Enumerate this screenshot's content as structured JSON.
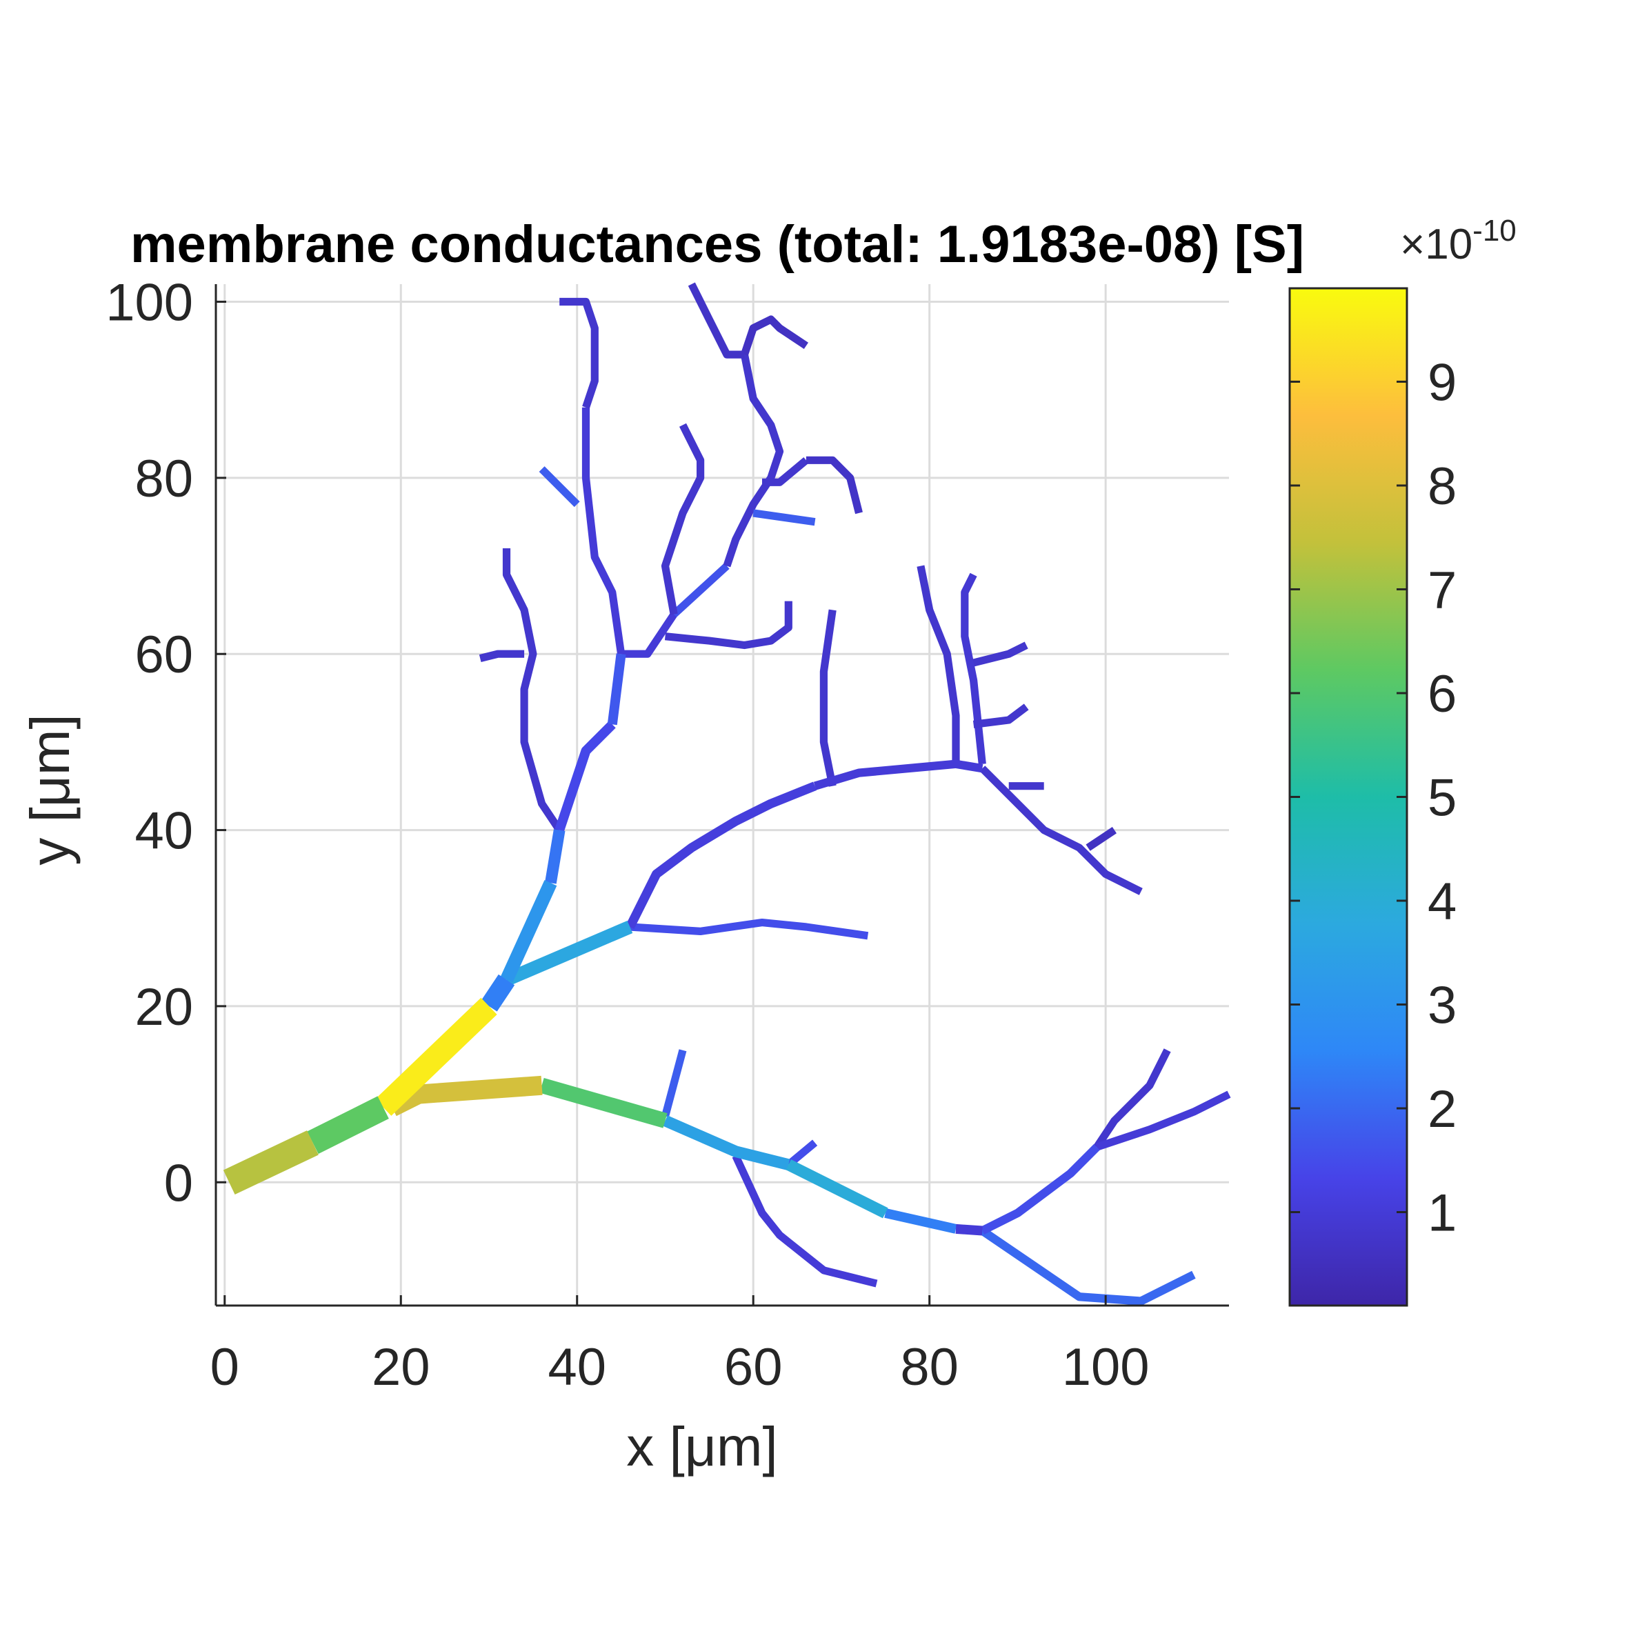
{
  "chart_data": {
    "type": "line",
    "title": "membrane conductances (total: 1.9183e-08) [S]",
    "xlabel": "x [μm]",
    "ylabel": "y [μm]",
    "xlim": [
      -1,
      114
    ],
    "ylim": [
      -14,
      102
    ],
    "xticks": [
      0,
      20,
      40,
      60,
      80,
      100
    ],
    "xtick_labels": [
      "0",
      "20",
      "40",
      "60",
      "80",
      "100"
    ],
    "yticks": [
      0,
      20,
      40,
      60,
      80,
      100
    ],
    "ytick_labels": [
      "0",
      "20",
      "40",
      "60",
      "80",
      "100"
    ],
    "grid": true,
    "colorbar": {
      "multiplier_base": "×10",
      "multiplier_exponent": "-10",
      "range": [
        0.1,
        9.9
      ],
      "ticks": [
        1,
        2,
        3,
        4,
        5,
        6,
        7,
        8,
        9
      ],
      "tick_labels": [
        "1",
        "2",
        "3",
        "4",
        "5",
        "6",
        "7",
        "8",
        "9"
      ],
      "colormap": [
        "#3e26a8",
        "#4743e8",
        "#2e87f7",
        "#2ca9df",
        "#1ebda8",
        "#5ec962",
        "#c3c13b",
        "#fdbe3d",
        "#f9fb0e"
      ]
    },
    "segments": [
      {
        "points": [
          [
            0.5,
            0
          ],
          [
            10,
            4.5
          ]
        ],
        "value": 7.3,
        "width": 7.0
      },
      {
        "points": [
          [
            10,
            4.5
          ],
          [
            18,
            8.5
          ]
        ],
        "value": 6.2,
        "width": 6.5
      },
      {
        "points": [
          [
            18,
            8.5
          ],
          [
            30,
            20
          ]
        ],
        "value": 9.6,
        "width": 6.0
      },
      {
        "points": [
          [
            30,
            20
          ],
          [
            32,
            23
          ]
        ],
        "value": 2.4,
        "width": 5.0
      },
      {
        "points": [
          [
            19,
            8.5
          ],
          [
            22,
            10
          ],
          [
            36,
            11
          ]
        ],
        "value": 7.8,
        "width": 5.0
      },
      {
        "points": [
          [
            36,
            11
          ],
          [
            50,
            7
          ]
        ],
        "value": 6.0,
        "width": 4.0
      },
      {
        "points": [
          [
            50,
            7
          ],
          [
            58,
            3.5
          ],
          [
            64,
            2
          ]
        ],
        "value": 3.5,
        "width": 3.0
      },
      {
        "points": [
          [
            64,
            2
          ],
          [
            75,
            -3.5
          ]
        ],
        "value": 3.9,
        "width": 3.0
      },
      {
        "points": [
          [
            75,
            -3.5
          ],
          [
            83,
            -5.3
          ]
        ],
        "value": 2.4,
        "width": 2.5
      },
      {
        "points": [
          [
            83,
            -5.3
          ],
          [
            86,
            -5.5
          ]
        ],
        "value": 1.0,
        "width": 2.5
      },
      {
        "points": [
          [
            86,
            -5.5
          ],
          [
            97,
            -13
          ],
          [
            104,
            -13.5
          ],
          [
            110,
            -10.5
          ]
        ],
        "value": 2.0,
        "width": 2.2
      },
      {
        "points": [
          [
            86,
            -5.5
          ],
          [
            90,
            -3.5
          ],
          [
            96,
            1
          ],
          [
            99,
            4
          ]
        ],
        "value": 1.5,
        "width": 2.2
      },
      {
        "points": [
          [
            99,
            4
          ],
          [
            101,
            7
          ],
          [
            105,
            11
          ],
          [
            107,
            15
          ]
        ],
        "value": 0.8,
        "width": 2.0
      },
      {
        "points": [
          [
            99,
            4
          ],
          [
            105,
            6
          ],
          [
            110,
            8
          ],
          [
            114,
            10
          ]
        ],
        "value": 1.0,
        "width": 2.0
      },
      {
        "points": [
          [
            50,
            7.5
          ],
          [
            52,
            15
          ]
        ],
        "value": 1.8,
        "width": 2.0
      },
      {
        "points": [
          [
            58,
            3
          ],
          [
            61,
            -3.5
          ],
          [
            63,
            -6
          ],
          [
            68,
            -10
          ],
          [
            74,
            -11.5
          ]
        ],
        "value": 1.0,
        "width": 2.0
      },
      {
        "points": [
          [
            64,
            2
          ],
          [
            67,
            4.5
          ]
        ],
        "value": 1.5,
        "width": 2.0
      },
      {
        "points": [
          [
            32,
            23
          ],
          [
            46,
            29
          ]
        ],
        "value": 3.7,
        "width": 3.5
      },
      {
        "points": [
          [
            32,
            23
          ],
          [
            37,
            34
          ]
        ],
        "value": 3.1,
        "width": 3.5
      },
      {
        "points": [
          [
            37,
            34
          ],
          [
            38,
            40
          ]
        ],
        "value": 2.2,
        "width": 3.0
      },
      {
        "points": [
          [
            38,
            40
          ],
          [
            41,
            49
          ],
          [
            44,
            52
          ]
        ],
        "value": 1.4,
        "width": 2.5
      },
      {
        "points": [
          [
            44,
            52
          ],
          [
            45,
            60
          ]
        ],
        "value": 1.7,
        "width": 2.5
      },
      {
        "points": [
          [
            45,
            60
          ],
          [
            44,
            67
          ],
          [
            42,
            71
          ],
          [
            41,
            80
          ],
          [
            41,
            88
          ]
        ],
        "value": 1.0,
        "width": 2.0
      },
      {
        "points": [
          [
            41,
            88
          ],
          [
            42,
            91
          ],
          [
            42,
            97
          ],
          [
            41,
            100
          ],
          [
            38,
            100
          ]
        ],
        "value": 0.8,
        "width": 2.0
      },
      {
        "points": [
          [
            45,
            60
          ],
          [
            48,
            60
          ],
          [
            51,
            64.5
          ]
        ],
        "value": 1.0,
        "width": 2.0
      },
      {
        "points": [
          [
            51,
            64.5
          ],
          [
            57,
            70
          ]
        ],
        "value": 1.6,
        "width": 2.0
      },
      {
        "points": [
          [
            57,
            70
          ],
          [
            58,
            73
          ],
          [
            60,
            77
          ],
          [
            62,
            80
          ],
          [
            63,
            83
          ],
          [
            62,
            86
          ],
          [
            60,
            89
          ],
          [
            59,
            94
          ]
        ],
        "value": 0.8,
        "width": 2.0
      },
      {
        "points": [
          [
            59,
            94
          ],
          [
            60,
            97
          ],
          [
            62,
            98
          ],
          [
            63,
            97
          ],
          [
            66,
            95
          ]
        ],
        "value": 0.6,
        "width": 2.0
      },
      {
        "points": [
          [
            51,
            64.5
          ],
          [
            50,
            70
          ],
          [
            52,
            76
          ],
          [
            54,
            80
          ],
          [
            54,
            82
          ],
          [
            52,
            86
          ]
        ],
        "value": 0.8,
        "width": 2.0
      },
      {
        "points": [
          [
            59,
            94
          ],
          [
            57,
            94
          ],
          [
            55,
            98
          ],
          [
            53,
            102
          ]
        ],
        "value": 0.7,
        "width": 2.0
      },
      {
        "points": [
          [
            60,
            76
          ],
          [
            67,
            75
          ]
        ],
        "value": 1.8,
        "width": 2.0
      },
      {
        "points": [
          [
            61,
            79.5
          ],
          [
            63,
            79.5
          ],
          [
            66,
            82
          ]
        ],
        "value": 0.8,
        "width": 2.0
      },
      {
        "points": [
          [
            66,
            82
          ],
          [
            69,
            82
          ],
          [
            71,
            80
          ],
          [
            72,
            76
          ]
        ],
        "value": 0.7,
        "width": 2.0
      },
      {
        "points": [
          [
            50,
            62
          ],
          [
            55,
            61.5
          ],
          [
            59,
            61
          ],
          [
            62,
            61.5
          ],
          [
            64,
            63
          ],
          [
            64,
            66
          ]
        ],
        "value": 0.8,
        "width": 2.0
      },
      {
        "points": [
          [
            38,
            40
          ],
          [
            36,
            43
          ],
          [
            34,
            50
          ],
          [
            34,
            56
          ],
          [
            35,
            60
          ],
          [
            34,
            65
          ],
          [
            32,
            69
          ],
          [
            32,
            72
          ]
        ],
        "value": 0.8,
        "width": 2.0
      },
      {
        "points": [
          [
            34,
            60
          ],
          [
            31,
            60
          ],
          [
            29,
            59.5
          ]
        ],
        "value": 0.8,
        "width": 2.0
      },
      {
        "points": [
          [
            40,
            77
          ],
          [
            36,
            81
          ]
        ],
        "value": 1.8,
        "width": 2.0
      },
      {
        "points": [
          [
            46,
            29
          ],
          [
            49,
            35
          ],
          [
            53,
            38
          ],
          [
            58,
            41
          ],
          [
            62,
            43
          ],
          [
            67,
            45
          ]
        ],
        "value": 1.1,
        "width": 2.4
      },
      {
        "points": [
          [
            67,
            45
          ],
          [
            72,
            46.5
          ],
          [
            83,
            47.5
          ],
          [
            86,
            47
          ]
        ],
        "value": 1.0,
        "width": 2.2
      },
      {
        "points": [
          [
            86,
            47
          ],
          [
            89,
            44
          ],
          [
            93,
            40
          ],
          [
            97,
            38
          ],
          [
            100,
            35
          ],
          [
            104,
            33
          ]
        ],
        "value": 0.8,
        "width": 2.0
      },
      {
        "points": [
          [
            89,
            45
          ],
          [
            93,
            45
          ]
        ],
        "value": 0.8,
        "width": 2.0
      },
      {
        "points": [
          [
            98,
            38
          ],
          [
            101,
            40
          ]
        ],
        "value": 0.6,
        "width": 2.0
      },
      {
        "points": [
          [
            46,
            29
          ],
          [
            54,
            28.5
          ],
          [
            61,
            29.5
          ],
          [
            66,
            29
          ],
          [
            73,
            28
          ]
        ],
        "value": 1.5,
        "width": 2.0
      },
      {
        "points": [
          [
            69,
            45
          ],
          [
            68,
            50
          ],
          [
            68,
            58
          ],
          [
            69,
            65
          ]
        ],
        "value": 0.8,
        "width": 2.0
      },
      {
        "points": [
          [
            83,
            47.5
          ],
          [
            83,
            53
          ],
          [
            82,
            60
          ],
          [
            80,
            65
          ],
          [
            79,
            70
          ]
        ],
        "value": 0.8,
        "width": 2.0
      },
      {
        "points": [
          [
            86,
            47.5
          ],
          [
            85,
            57
          ],
          [
            84,
            62
          ],
          [
            84,
            67
          ],
          [
            85,
            69
          ]
        ],
        "value": 0.9,
        "width": 2.0
      },
      {
        "points": [
          [
            85,
            52
          ],
          [
            89,
            52.5
          ],
          [
            91,
            54
          ]
        ],
        "value": 0.8,
        "width": 2.0
      },
      {
        "points": [
          [
            85,
            59
          ],
          [
            89,
            60
          ],
          [
            91,
            61
          ]
        ],
        "value": 0.8,
        "width": 2.0
      }
    ]
  }
}
